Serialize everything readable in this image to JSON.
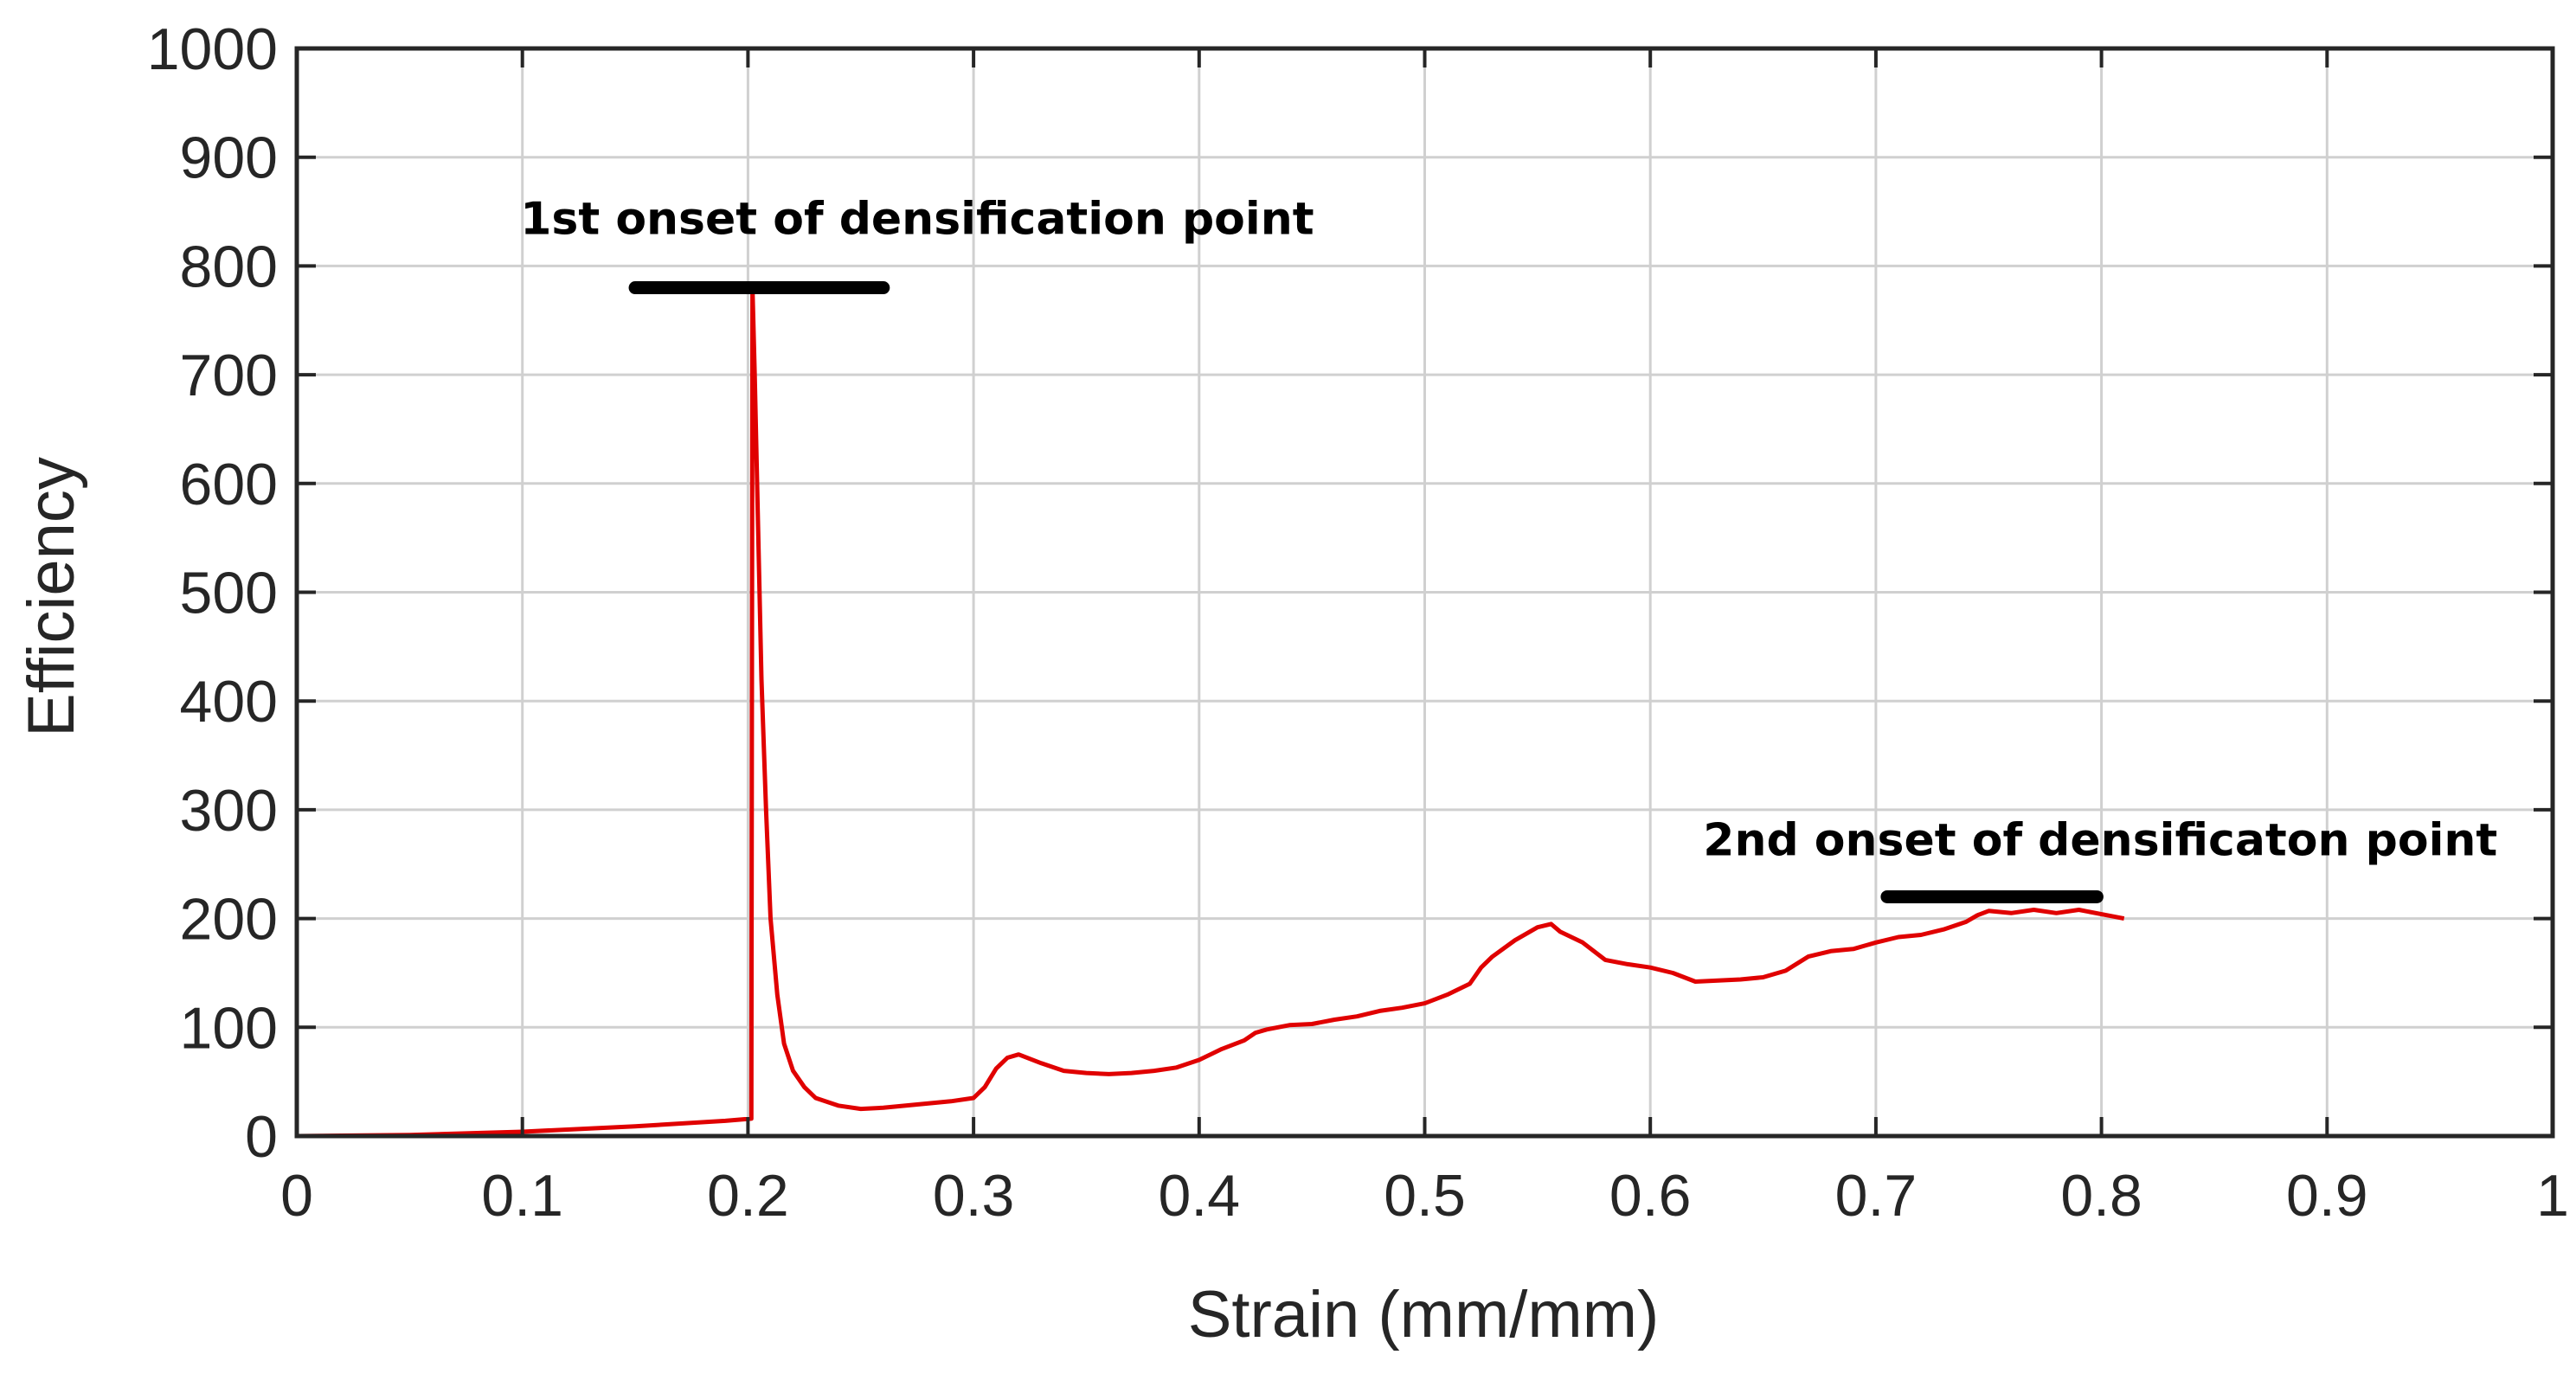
{
  "chart_data": {
    "type": "line",
    "title": "",
    "xlabel": "Strain (mm/mm)",
    "ylabel": "Efficiency",
    "xlim": [
      0,
      1
    ],
    "ylim": [
      0,
      1000
    ],
    "grid": true,
    "legend": "none",
    "x_ticks": [
      "0",
      "0.1",
      "0.2",
      "0.3",
      "0.4",
      "0.5",
      "0.6",
      "0.7",
      "0.8",
      "0.9",
      "1"
    ],
    "y_ticks": [
      "0",
      "100",
      "200",
      "300",
      "400",
      "500",
      "600",
      "700",
      "800",
      "900",
      "1000"
    ],
    "colors": {
      "series": "#e00000",
      "grid": "#d0d0d0",
      "axis": "#262626",
      "marker_bar": "#000000"
    },
    "series": [
      {
        "x": [
          0,
          0.05,
          0.1,
          0.15,
          0.19,
          0.2015,
          0.202,
          0.203,
          0.2045,
          0.206,
          0.208,
          0.21,
          0.213,
          0.216,
          0.22,
          0.225,
          0.23,
          0.24,
          0.25,
          0.26,
          0.27,
          0.28,
          0.29,
          0.3,
          0.305,
          0.31,
          0.315,
          0.32,
          0.33,
          0.34,
          0.35,
          0.36,
          0.37,
          0.38,
          0.39,
          0.4,
          0.41,
          0.42,
          0.425,
          0.43,
          0.44,
          0.45,
          0.46,
          0.47,
          0.48,
          0.49,
          0.5,
          0.51,
          0.52,
          0.525,
          0.53,
          0.54,
          0.55,
          0.556,
          0.56,
          0.57,
          0.58,
          0.59,
          0.6,
          0.61,
          0.62,
          0.63,
          0.64,
          0.65,
          0.66,
          0.67,
          0.68,
          0.69,
          0.7,
          0.71,
          0.72,
          0.73,
          0.74,
          0.745,
          0.75,
          0.76,
          0.77,
          0.78,
          0.79,
          0.8,
          0.81
        ],
        "y": [
          0,
          1,
          4,
          9,
          14,
          16,
          780,
          700,
          560,
          420,
          300,
          200,
          130,
          85,
          60,
          45,
          35,
          28,
          25,
          26,
          28,
          30,
          32,
          35,
          45,
          62,
          72,
          75,
          67,
          60,
          58,
          57,
          58,
          60,
          63,
          70,
          80,
          88,
          95,
          98,
          102,
          103,
          107,
          110,
          115,
          118,
          122,
          130,
          140,
          155,
          165,
          180,
          192,
          195,
          188,
          178,
          162,
          158,
          155,
          150,
          142,
          143,
          144,
          146,
          152,
          165,
          170,
          172,
          178,
          183,
          185,
          190,
          197,
          203,
          207,
          205,
          208,
          205,
          208,
          204,
          200
        ]
      }
    ],
    "annotations": [
      {
        "text": "1st onset of densification point",
        "bar_x": [
          0.15,
          0.26
        ],
        "bar_y": 780
      },
      {
        "text": "2nd onset of densificaton point",
        "bar_x": [
          0.705,
          0.798
        ],
        "bar_y": 220
      }
    ]
  }
}
